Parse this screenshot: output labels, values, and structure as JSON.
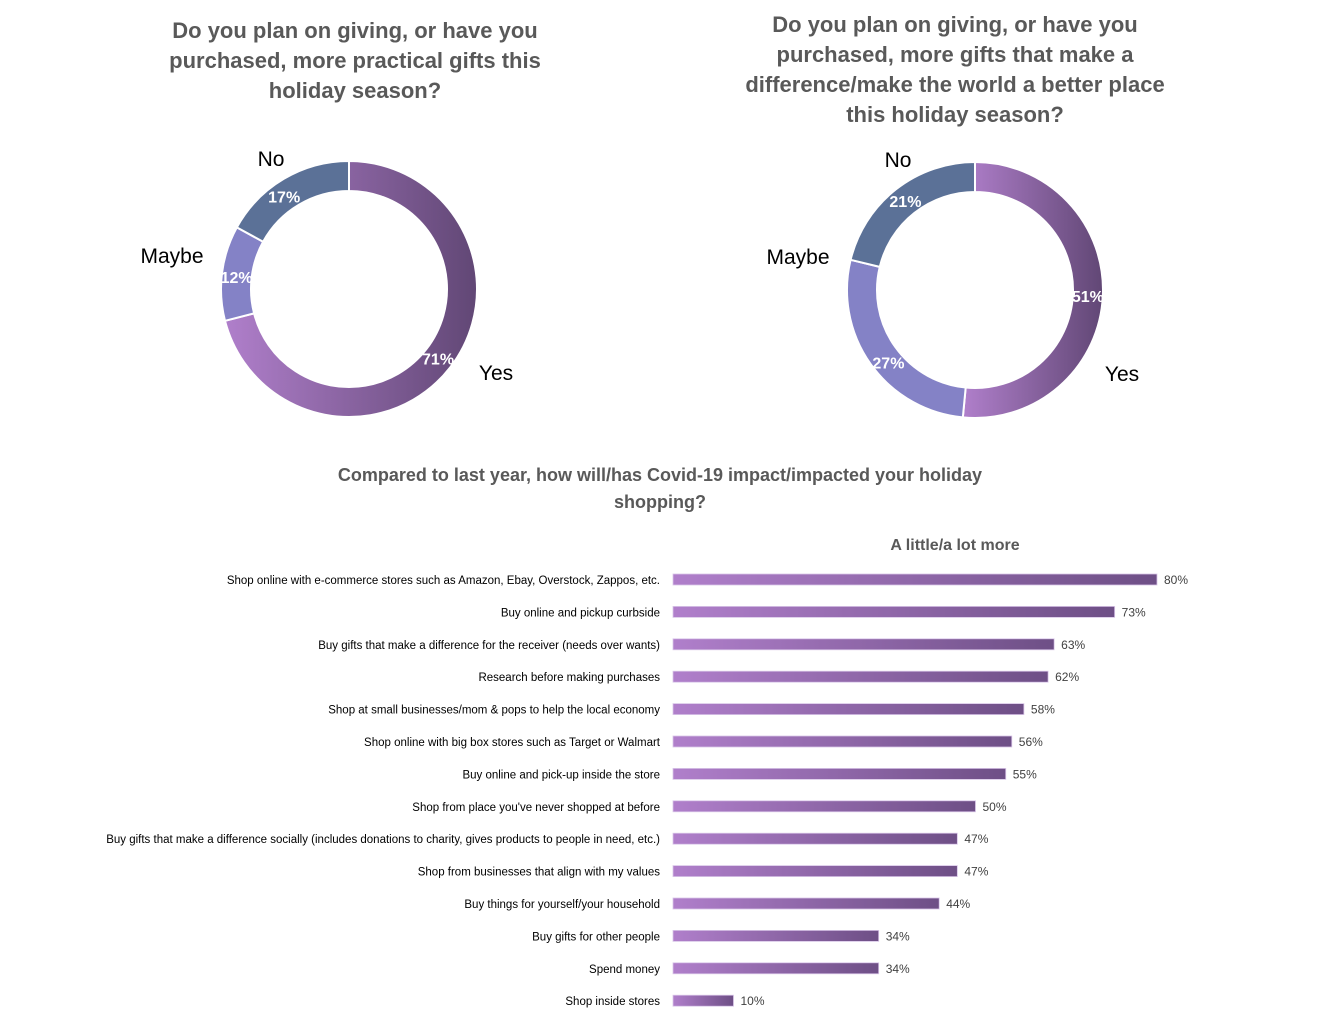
{
  "chart_data": [
    {
      "type": "pie",
      "donut": true,
      "title": "Do you plan on giving, or have you purchased, more practical gifts this holiday season?",
      "categories": [
        "Yes",
        "Maybe",
        "No"
      ],
      "values": [
        71,
        12,
        17
      ],
      "data_labels": [
        "71%",
        "12%",
        "17%"
      ],
      "colors": [
        "#8a5fa8",
        "#8482c6",
        "#5b7197"
      ]
    },
    {
      "type": "pie",
      "donut": true,
      "title": "Do you plan on giving, or have you purchased, more gifts that make a difference/make the world a better place this holiday season?",
      "categories": [
        "Yes",
        "Maybe",
        "No"
      ],
      "values": [
        51,
        27,
        21
      ],
      "data_labels": [
        "51%",
        "27%",
        "21%"
      ],
      "colors": [
        "#8a5fa8",
        "#8482c6",
        "#5b7197"
      ]
    },
    {
      "type": "bar",
      "orientation": "horizontal",
      "title": "Compared to last year, how will/has Covid-19 impact/impacted your holiday shopping?",
      "series_name": "A little/a lot more",
      "categories": [
        "Shop online with e-commerce stores such as Amazon, Ebay, Overstock, Zappos, etc.",
        "Buy online and pickup curbside",
        "Buy gifts that make a difference for the receiver (needs over wants)",
        "Research before making purchases",
        "Shop at small businesses/mom & pops to help the local economy",
        "Shop online with big box stores such as Target or Walmart",
        "Buy online and pick-up inside the store",
        "Shop from place you've never shopped at before",
        "Buy gifts that make a difference socially (includes donations to charity, gives products to people in need, etc.)",
        "Shop from businesses that align with my values",
        "Buy things for yourself/your household",
        "Buy gifts for other people",
        "Spend money",
        "Shop inside stores"
      ],
      "values": [
        80,
        73,
        63,
        62,
        58,
        56,
        55,
        50,
        47,
        47,
        44,
        34,
        34,
        10
      ],
      "value_suffix": "%",
      "color": "#9a6cb8"
    }
  ]
}
